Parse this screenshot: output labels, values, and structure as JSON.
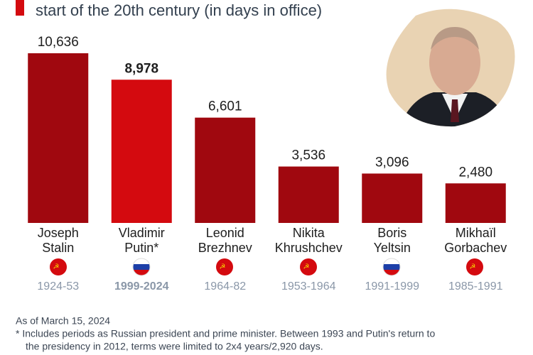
{
  "subtitle": "start of the 20th century (in days in office)",
  "chart_data": {
    "type": "bar",
    "categories": [
      [
        "Joseph",
        "Stalin"
      ],
      [
        "Vladimir",
        "Putin*"
      ],
      [
        "Leonid",
        "Brezhnev"
      ],
      [
        "Nikita",
        "Khrushchev"
      ],
      [
        "Boris",
        "Yeltsin"
      ],
      [
        "Mikhaïl",
        "Gorbachev"
      ]
    ],
    "values": [
      10636,
      8978,
      6601,
      3536,
      3096,
      2480
    ],
    "value_labels": [
      "10,636",
      "8,978",
      "6,601",
      "3,536",
      "3,096",
      "2,480"
    ],
    "periods": [
      "1924-53",
      "1999-2024",
      "1964-82",
      "1953-1964",
      "1991-1999",
      "1985-1991"
    ],
    "colors": [
      "#a0080f",
      "#d40a0f",
      "#a0080f",
      "#a0080f",
      "#a0080f",
      "#a0080f"
    ],
    "highlight_index": 1
  },
  "notes": [
    "As of March 15, 2024",
    "* Includes periods as Russian president and prime minister. Between 1993 and Putin's return to",
    "the presidency in 2012, terms were limited to 2x4 years/2,920 days."
  ]
}
